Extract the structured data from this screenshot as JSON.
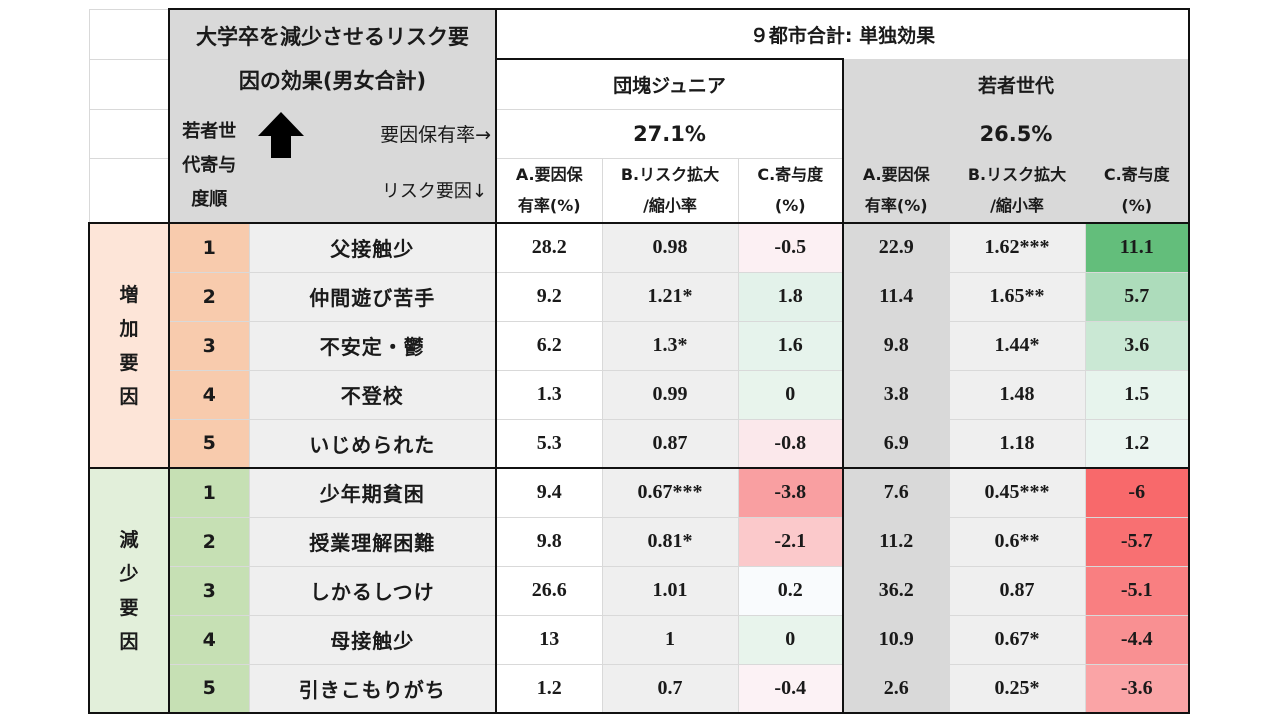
{
  "title": "大学卒を減少させるリスク要因の効果(男女合計)",
  "title_line1": "大学卒を減少させるリスク要",
  "title_line2": "因の効果(男女合計)",
  "overall_header": "９都市合計: 単独効果",
  "rank_label_line1": "若者世",
  "rank_label_line2": "代寄与",
  "rank_label_line3": "度順",
  "possession_label": "要因保有率→",
  "risk_label": "リスク要因↓",
  "generations": [
    {
      "name": "団塊ジュニア",
      "rate": "27.1%"
    },
    {
      "name": "若者世代",
      "rate": "26.5%"
    }
  ],
  "columns": {
    "a_line1": "A.要因保",
    "a_line2": "有率(%)",
    "b_line1": "B.リスク拡大",
    "b_line2": "/縮小率",
    "c_line1": "C.寄与度",
    "c_line2": "(%)"
  },
  "groups": [
    {
      "label_chars": [
        "増",
        "加",
        "要",
        "因"
      ],
      "rows": [
        {
          "rank": "1",
          "factor": "父接触少",
          "j": [
            "28.2",
            "0.98",
            "-0.5"
          ],
          "y": [
            "22.9",
            "1.62***",
            "11.1"
          ]
        },
        {
          "rank": "2",
          "factor": "仲間遊び苦手",
          "j": [
            "9.2",
            "1.21*",
            "1.8"
          ],
          "y": [
            "11.4",
            "1.65**",
            "5.7"
          ]
        },
        {
          "rank": "3",
          "factor": "不安定・鬱",
          "j": [
            "6.2",
            "1.3*",
            "1.6"
          ],
          "y": [
            "9.8",
            "1.44*",
            "3.6"
          ]
        },
        {
          "rank": "4",
          "factor": "不登校",
          "j": [
            "1.3",
            "0.99",
            "0"
          ],
          "y": [
            "3.8",
            "1.48",
            "1.5"
          ]
        },
        {
          "rank": "5",
          "factor": "いじめられた",
          "j": [
            "5.3",
            "0.87",
            "-0.8"
          ],
          "y": [
            "6.9",
            "1.18",
            "1.2"
          ]
        }
      ]
    },
    {
      "label_chars": [
        "減",
        "少",
        "要",
        "因"
      ],
      "rows": [
        {
          "rank": "1",
          "factor": "少年期貧困",
          "j": [
            "9.4",
            "0.67***",
            "-3.8"
          ],
          "y": [
            "7.6",
            "0.45***",
            "-6"
          ]
        },
        {
          "rank": "2",
          "factor": "授業理解困難",
          "j": [
            "9.8",
            "0.81*",
            "-2.1"
          ],
          "y": [
            "11.2",
            "0.6**",
            "-5.7"
          ]
        },
        {
          "rank": "3",
          "factor": "しかるしつけ",
          "j": [
            "26.6",
            "1.01",
            "0.2"
          ],
          "y": [
            "36.2",
            "0.87",
            "-5.1"
          ]
        },
        {
          "rank": "4",
          "factor": "母接触少",
          "j": [
            "13",
            "1",
            "0"
          ],
          "y": [
            "10.9",
            "0.67*",
            "-4.4"
          ]
        },
        {
          "rank": "5",
          "factor": "引きこもりがち",
          "j": [
            "1.2",
            "0.7",
            "-0.4"
          ],
          "y": [
            "2.6",
            "0.25*",
            "-3.6"
          ]
        }
      ]
    }
  ],
  "colors": {
    "positive_strong": "#63be7b",
    "negative_strong": "#f8696b",
    "neutral": "#fcfcff",
    "header_gray": "#d9d9d9",
    "increase_group": "#fde5d8",
    "decrease_group": "#e2efda"
  }
}
